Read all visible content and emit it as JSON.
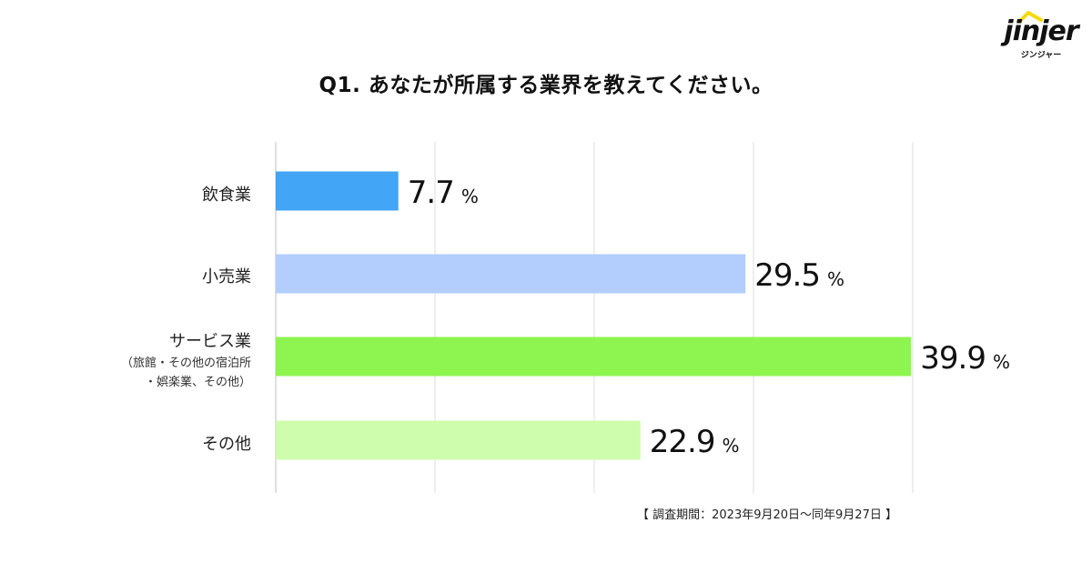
{
  "logo": {
    "wordmark": "jinjer",
    "subtext": "ジンジャー",
    "accent_color": "#f5d90a"
  },
  "title": "Q1. あなたが所属する業界を教えてください。",
  "chart_data": {
    "type": "bar",
    "orientation": "horizontal",
    "title": "Q1. あなたが所属する業界を教えてください。",
    "categories": [
      "飲食業",
      "小売業",
      "サービス業",
      "その他"
    ],
    "category_notes": [
      "",
      "",
      "（旅館・その他の宿泊所\n・娯楽業、その他）",
      ""
    ],
    "values": [
      7.7,
      29.5,
      39.9,
      22.9
    ],
    "value_labels": [
      "7.7",
      "29.5",
      "39.9",
      "22.9"
    ],
    "unit": "%",
    "colors": [
      "#42a5f5",
      "#b3cdfd",
      "#8ef44f",
      "#cffdae"
    ],
    "xlim": [
      0,
      40
    ],
    "grid": true,
    "legend": "none"
  },
  "footer": {
    "survey_period": "【 調査期間：2023年9月20日〜同年9月27日 】"
  }
}
